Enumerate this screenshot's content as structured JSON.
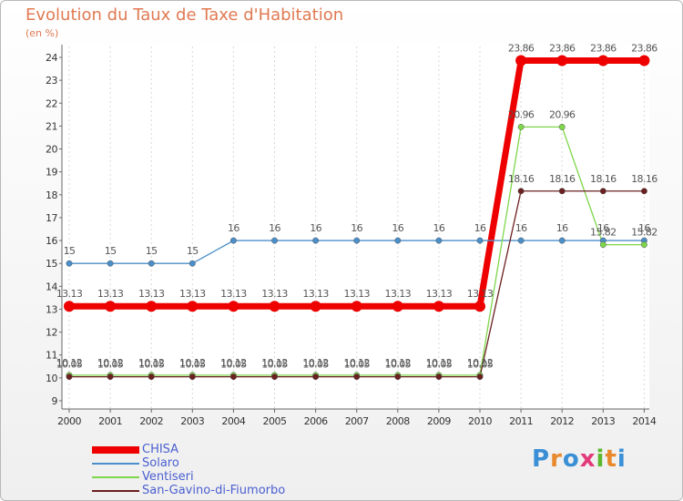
{
  "chart_data": {
    "type": "line",
    "title": "Evolution du Taux de Taxe d'Habitation",
    "subtitle": "(en %)",
    "xlabel": "",
    "ylabel": "",
    "categories": [
      "2000",
      "2001",
      "2002",
      "2003",
      "2004",
      "2005",
      "2006",
      "2007",
      "2008",
      "2009",
      "2010",
      "2011",
      "2012",
      "2013",
      "2014"
    ],
    "ylim": [
      9,
      24
    ],
    "yticks": [
      9,
      10,
      11,
      12,
      13,
      14,
      15,
      16,
      17,
      18,
      19,
      20,
      21,
      22,
      23,
      24
    ],
    "series": [
      {
        "name": "CHISA",
        "color": "#ee0000",
        "values": [
          13.13,
          13.13,
          13.13,
          13.13,
          13.13,
          13.13,
          13.13,
          13.13,
          13.13,
          13.13,
          13.13,
          23.86,
          23.86,
          23.86,
          23.86
        ],
        "labels": [
          "13.13",
          "13.13",
          "13.13",
          "13.13",
          "13.13",
          "13.13",
          "13.13",
          "13.13",
          "13.13",
          "13.13",
          "13.13",
          "23.86",
          "23.86",
          "23.86",
          "23.86"
        ]
      },
      {
        "name": "Solaro",
        "color": "#4a8fc9",
        "values": [
          15,
          15,
          15,
          15,
          16,
          16,
          16,
          16,
          16,
          16,
          16,
          16,
          16,
          16,
          16
        ],
        "labels": [
          "15",
          "15",
          "15",
          "15",
          "16",
          "16",
          "16",
          "16",
          "16",
          "16",
          "16",
          "16",
          "16",
          "16",
          "16"
        ]
      },
      {
        "name": "Ventiseri",
        "color": "#7ed64a",
        "values": [
          10.12,
          10.12,
          10.12,
          10.12,
          10.12,
          10.12,
          10.12,
          10.12,
          10.12,
          10.12,
          10.12,
          20.96,
          20.96,
          15.82,
          15.82
        ],
        "labels": [
          "10.12",
          "10.12",
          "10.12",
          "10.12",
          "10.12",
          "10.12",
          "10.12",
          "10.12",
          "10.12",
          "10.12",
          "10.12",
          "20.96",
          "20.96",
          "15.82",
          "15.82"
        ]
      },
      {
        "name": "San-Gavino-di-Fiumorbo",
        "color": "#6b1f1f",
        "values": [
          10.05,
          10.05,
          10.05,
          10.05,
          10.05,
          10.05,
          10.05,
          10.05,
          10.05,
          10.05,
          10.05,
          18.16,
          18.16,
          18.16,
          18.16
        ],
        "labels": [
          "10.05",
          "10.05",
          "10.05",
          "10.05",
          "10.05",
          "10.05",
          "10.05",
          "10.05",
          "10.05",
          "10.05",
          "10.05",
          "18.16",
          "18.16",
          "18.16",
          "18.16"
        ]
      }
    ],
    "legend": "bottom-left"
  },
  "logo": {
    "text": "Proxiti",
    "colors": [
      "#3a8fd6",
      "#e8892e",
      "#3a8fd6",
      "#e23a7a",
      "#5cb82e",
      "#e8892e",
      "#3a8fd6"
    ]
  }
}
